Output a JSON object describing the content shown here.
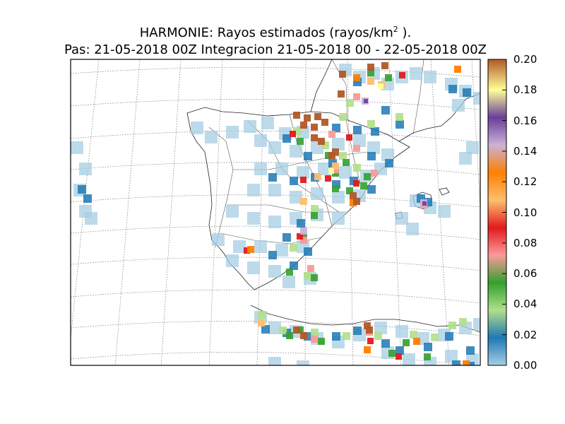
{
  "figure": {
    "title_line1_main": "HARMONIE: Rayos estimados  (rayos/km",
    "title_line1_sup": "2",
    "title_line1_end": " ).",
    "title_line2": "Pas: 21-05-2018 00Z Integracion 21-05-2018 00 - 22-05-2018 00Z"
  },
  "colorbar": {
    "ticks": [
      "0.00",
      "0.02",
      "0.04",
      "0.06",
      "0.08",
      "0.10",
      "0.12",
      "0.14",
      "0.16",
      "0.18",
      "0.20"
    ],
    "gradient": [
      "#a6cee3",
      "#1f78b4",
      "#b2df8a",
      "#33a02c",
      "#fb9a99",
      "#e31a1c",
      "#fdbf6f",
      "#ff7f00",
      "#cab2d6",
      "#6a3d9a",
      "#ffff99",
      "#b15928"
    ]
  },
  "map": {
    "region": "Iberian Peninsula, Balearic Islands, North Africa",
    "projection_grid": "dotted",
    "colors": {
      "light_blue": "#a6cee3",
      "blue": "#1f78b4",
      "light_green": "#b2df8a",
      "green": "#33a02c",
      "pink": "#fb9a99",
      "red": "#e31a1c",
      "light_orange": "#fdbf6f",
      "orange": "#ff7f00",
      "lavender": "#cab2d6",
      "purple": "#6a3d9a",
      "yellow": "#ffff99",
      "brown": "#b15928"
    }
  }
}
